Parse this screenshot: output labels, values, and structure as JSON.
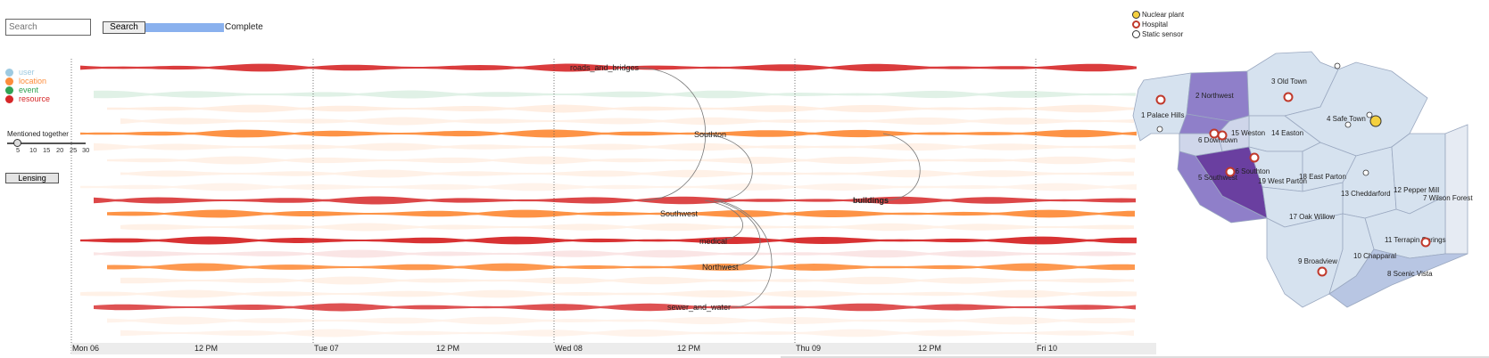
{
  "search": {
    "placeholder": "Search",
    "button_label": "Search",
    "progress_label": "Complete",
    "progress_fraction": 1.0
  },
  "legend": [
    {
      "label": "user",
      "color": "#9ecae1"
    },
    {
      "label": "location",
      "color": "#fd8d3c"
    },
    {
      "label": "event",
      "color": "#31a354"
    },
    {
      "label": "resource",
      "color": "#d62728"
    }
  ],
  "slider": {
    "label": "Mentioned together",
    "ticks": [
      "5",
      "10",
      "15",
      "20",
      "25",
      "30"
    ],
    "value": 5
  },
  "lensing_label": "Lensing",
  "timeline": {
    "days": [
      "Mon 06",
      "Tue 07",
      "Wed 08",
      "Thu 09",
      "Fri 10"
    ],
    "noon_label": "12 PM",
    "topics": [
      {
        "label": "roads_and_bridges",
        "type": "resource",
        "bold": false
      },
      {
        "label": "Southton",
        "type": "location",
        "bold": false
      },
      {
        "label": "buildings",
        "type": "resource",
        "bold": true
      },
      {
        "label": "Southwest",
        "type": "location",
        "bold": false
      },
      {
        "label": "medical",
        "type": "resource",
        "bold": false
      },
      {
        "label": "Northwest",
        "type": "location",
        "bold": false
      },
      {
        "label": "sewer_and_water",
        "type": "resource",
        "bold": false
      }
    ]
  },
  "map": {
    "legend": [
      {
        "label": "Nuclear plant",
        "icon": "radiation-icon"
      },
      {
        "label": "Hospital",
        "icon": "hospital-icon"
      },
      {
        "label": "Static sensor",
        "icon": "sensor-icon"
      }
    ],
    "regions": [
      "1 Palace Hills",
      "2 Northwest",
      "3 Old Town",
      "4 Safe Town",
      "5 Southwest",
      "6 Downtown",
      "7 Wilson Forest",
      "8 Scenic Vista",
      "9 Broadview",
      "10 Chapparal",
      "11 Terrapin Springs",
      "12 Pepper Mill",
      "13 Cheddarford",
      "14 Easton",
      "15 Weston",
      "16 Southton",
      "17 Oak Willow",
      "18 East Parton",
      "19 West Parton"
    ]
  }
}
